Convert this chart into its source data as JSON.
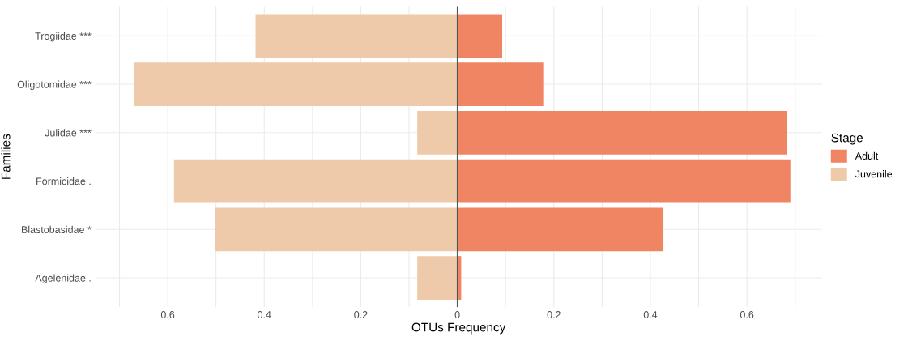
{
  "chart_data": {
    "type": "bar",
    "orientation": "horizontal",
    "stacked": true,
    "xlabel": "OTUs Frequency",
    "ylabel": "Families",
    "legend_title": "Stage",
    "legend": "right",
    "categories": [
      "Trogiidae ***",
      "Oligotomidae ***",
      "Julidae ***",
      "Formicidae .",
      "Blastobasidae *",
      "Agelenidae ."
    ],
    "series": [
      {
        "name": "Adult",
        "color": "#ef8563",
        "values": [
          0.093,
          0.178,
          0.682,
          0.69,
          0.427,
          0.008
        ]
      },
      {
        "name": "Juvenile",
        "color": "#eecaaa",
        "values": [
          -0.418,
          -0.67,
          -0.083,
          -0.587,
          -0.502,
          -0.083
        ]
      }
    ],
    "xlim": [
      -0.75,
      0.755
    ],
    "xticks": [
      {
        "value": -0.7,
        "label": null
      },
      {
        "value": -0.6,
        "label": "0.6"
      },
      {
        "value": -0.5,
        "label": null
      },
      {
        "value": -0.4,
        "label": "0.4"
      },
      {
        "value": -0.3,
        "label": null
      },
      {
        "value": -0.2,
        "label": "0.2"
      },
      {
        "value": -0.1,
        "label": null
      },
      0,
      {
        "value": 0.1,
        "label": null
      },
      {
        "value": 0.2,
        "label": "0.2"
      },
      {
        "value": 0.3,
        "label": null
      },
      {
        "value": 0.4,
        "label": "0.4"
      },
      {
        "value": 0.5,
        "label": null
      },
      {
        "value": 0.6,
        "label": "0.6"
      },
      {
        "value": 0.7,
        "label": null
      }
    ],
    "grid": true,
    "ref_lines": [
      {
        "axis": "x",
        "value": 0,
        "color": "#555555"
      }
    ]
  }
}
